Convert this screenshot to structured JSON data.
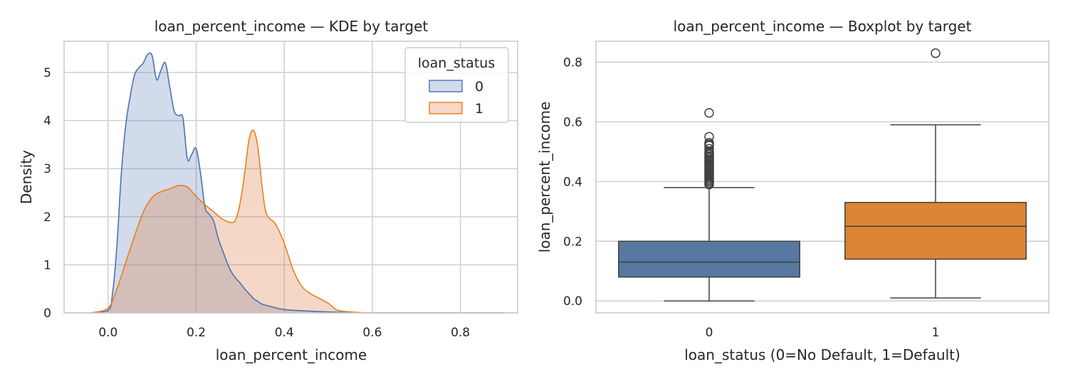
{
  "colors": {
    "class0": "#4c72b0",
    "class1": "#dd8452",
    "kde_line1": "#e8801a",
    "box0": "#5778a0",
    "box1": "#dc8534",
    "whisker": "#404040"
  },
  "chart_data": [
    {
      "type": "area",
      "subtype": "kde",
      "title": "loan_percent_income — KDE by target",
      "xlabel": "loan_percent_income",
      "ylabel": "Density",
      "xlim": [
        -0.1,
        0.93
      ],
      "ylim": [
        0,
        5.65
      ],
      "xticks": [
        0.0,
        0.2,
        0.4,
        0.6,
        0.8
      ],
      "xtick_labels": [
        "0.0",
        "0.2",
        "0.4",
        "0.6",
        "0.8"
      ],
      "yticks": [
        0,
        1,
        2,
        3,
        4,
        5
      ],
      "ytick_labels": [
        "0",
        "1",
        "2",
        "3",
        "4",
        "5"
      ],
      "grid": true,
      "legend": {
        "title": "loan_status",
        "placement": "top-right",
        "entries": [
          "0",
          "1"
        ]
      },
      "series": [
        {
          "name": "0",
          "x": [
            -0.04,
            0.0,
            0.01,
            0.02,
            0.03,
            0.04,
            0.05,
            0.06,
            0.07,
            0.08,
            0.09,
            0.1,
            0.11,
            0.12,
            0.13,
            0.14,
            0.15,
            0.16,
            0.17,
            0.18,
            0.19,
            0.2,
            0.21,
            0.22,
            0.23,
            0.24,
            0.25,
            0.26,
            0.27,
            0.28,
            0.29,
            0.3,
            0.31,
            0.32,
            0.33,
            0.34,
            0.35,
            0.37,
            0.4,
            0.45,
            0.5,
            0.55,
            0.6,
            0.7,
            0.9
          ],
          "y": [
            0.0,
            0.05,
            0.4,
            1.4,
            2.9,
            3.9,
            4.5,
            4.95,
            5.1,
            5.2,
            5.38,
            5.35,
            4.85,
            5.05,
            5.2,
            4.7,
            4.2,
            4.1,
            4.05,
            3.2,
            3.3,
            3.42,
            2.9,
            2.2,
            2.05,
            1.9,
            1.55,
            1.3,
            1.05,
            0.85,
            0.72,
            0.62,
            0.5,
            0.4,
            0.3,
            0.24,
            0.18,
            0.13,
            0.07,
            0.04,
            0.02,
            0.01,
            0.0,
            0.0,
            0.0
          ]
        },
        {
          "name": "1",
          "x": [
            -0.04,
            0.0,
            0.02,
            0.04,
            0.06,
            0.08,
            0.1,
            0.12,
            0.14,
            0.16,
            0.18,
            0.2,
            0.22,
            0.24,
            0.26,
            0.28,
            0.29,
            0.3,
            0.31,
            0.32,
            0.33,
            0.34,
            0.35,
            0.36,
            0.38,
            0.4,
            0.42,
            0.44,
            0.46,
            0.48,
            0.5,
            0.52,
            0.55,
            0.6,
            0.7,
            0.9
          ],
          "y": [
            0.0,
            0.1,
            0.5,
            1.05,
            1.6,
            2.1,
            2.4,
            2.52,
            2.58,
            2.65,
            2.62,
            2.42,
            2.25,
            2.1,
            1.95,
            1.88,
            1.95,
            2.3,
            2.9,
            3.6,
            3.8,
            3.45,
            2.6,
            2.05,
            1.85,
            1.45,
            0.9,
            0.55,
            0.4,
            0.3,
            0.2,
            0.06,
            0.02,
            0.0,
            0.0,
            0.0
          ]
        }
      ]
    },
    {
      "type": "box",
      "title": "loan_percent_income — Boxplot by target",
      "xlabel": "loan_status (0=No Default, 1=Default)",
      "ylabel": "loan_percent_income",
      "categories": [
        "0",
        "1"
      ],
      "ylim": [
        -0.04,
        0.87
      ],
      "yticks": [
        0.0,
        0.2,
        0.4,
        0.6,
        0.8
      ],
      "ytick_labels": [
        "0.0",
        "0.2",
        "0.4",
        "0.6",
        "0.8"
      ],
      "grid": true,
      "boxes": [
        {
          "category": "0",
          "whisker_low": 0.0,
          "q1": 0.08,
          "median": 0.13,
          "q3": 0.2,
          "whisker_high": 0.38,
          "outliers": [
            0.39,
            0.395,
            0.4,
            0.405,
            0.41,
            0.415,
            0.42,
            0.425,
            0.43,
            0.435,
            0.44,
            0.445,
            0.45,
            0.455,
            0.46,
            0.465,
            0.47,
            0.475,
            0.48,
            0.485,
            0.49,
            0.495,
            0.5,
            0.51,
            0.52,
            0.525,
            0.53,
            0.55,
            0.63
          ]
        },
        {
          "category": "1",
          "whisker_low": 0.01,
          "q1": 0.14,
          "median": 0.25,
          "q3": 0.33,
          "whisker_high": 0.59,
          "outliers": [
            0.83
          ]
        }
      ]
    }
  ]
}
